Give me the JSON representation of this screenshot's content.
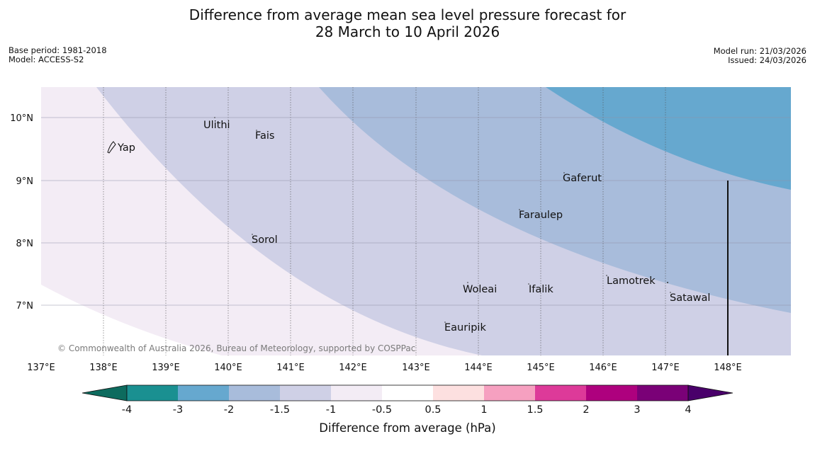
{
  "header": {
    "title_line1": "Difference from average mean sea level pressure forecast for",
    "title_line2": "28 March to 10 April 2026",
    "base_period": "Base period: 1981-2018",
    "model": "Model: ACCESS-S2",
    "model_run": "Model run: 21/03/2026",
    "issued": "Issued: 24/03/2026"
  },
  "map": {
    "lon_labels": [
      "137°E",
      "138°E",
      "139°E",
      "140°E",
      "141°E",
      "142°E",
      "143°E",
      "144°E",
      "145°E",
      "146°E",
      "147°E",
      "148°E"
    ],
    "lat_labels": [
      "10°N",
      "9°N",
      "8°N",
      "7°N"
    ],
    "places": [
      "Ulithi",
      "Fais",
      "Yap",
      "Gaferut",
      "Faraulep",
      "Sorol",
      "Lamotrek",
      "Woleai",
      "Ifalik",
      "Satawal",
      "Eauripik"
    ],
    "copyright": "© Commonwealth of Australia 2026, Bureau of Meteorology, supported by COSPPac",
    "colors": {
      "band_neg05_neg1": "#f3ecf5",
      "band_neg1_neg15": "#cfd0e6",
      "band_neg15_neg2": "#a8bcdb",
      "band_neg2_neg3": "#66a8cf"
    }
  },
  "colorbar": {
    "ticks": [
      "-4",
      "-3",
      "-2",
      "-1.5",
      "-1",
      "-0.5",
      "0.5",
      "1",
      "1.5",
      "2",
      "3",
      "4"
    ],
    "colors": [
      "#0d6b5e",
      "#1a9091",
      "#66a8cf",
      "#a8bcdb",
      "#cfd0e6",
      "#f3ecf5",
      "#ffffff",
      "#fde0e0",
      "#f6a0c0",
      "#dd3a99",
      "#ae017e",
      "#7a0177",
      "#49006a"
    ],
    "title": "Difference from average (hPa)"
  }
}
